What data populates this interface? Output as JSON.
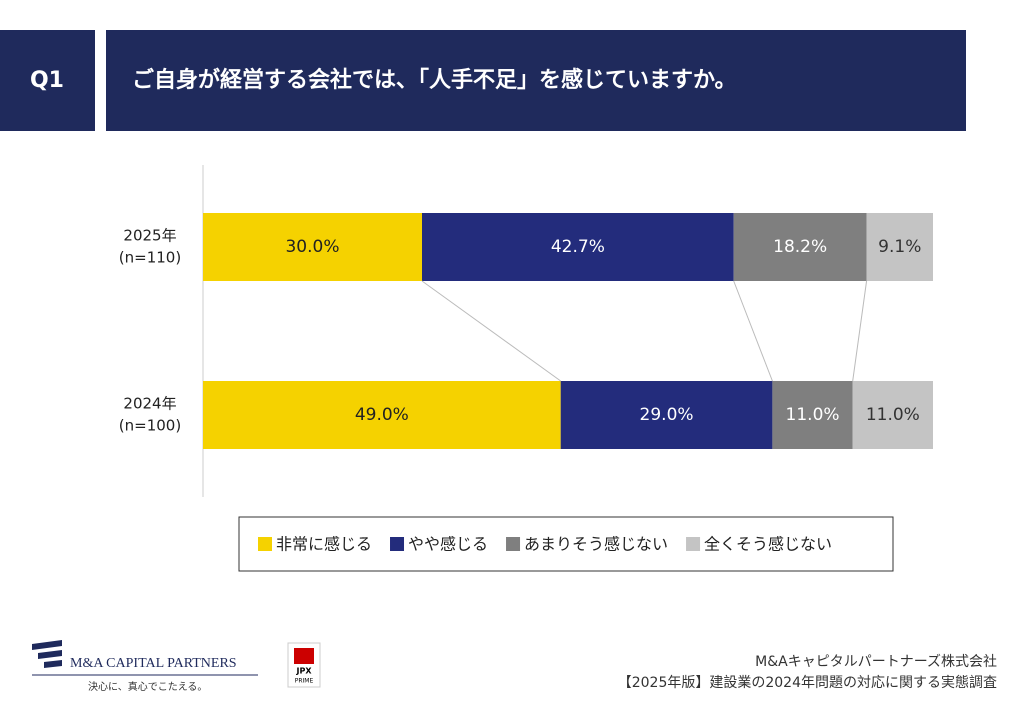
{
  "header": {
    "number": "Q1",
    "question": "ご自身が経営する会社では、「人手不足」を感じていますか。"
  },
  "chart_data": {
    "type": "stacked-bar-horizontal",
    "categories": [
      "2025年",
      "2024年"
    ],
    "category_notes": [
      "(n=110)",
      "(n=100)"
    ],
    "xlim": [
      0,
      100
    ],
    "series": [
      {
        "name": "非常に感じる",
        "color": "#f5d200",
        "label_color": "#222222",
        "values": [
          30.0,
          49.0
        ],
        "value_labels": [
          "30.0%",
          "49.0%"
        ]
      },
      {
        "name": "やや感じる",
        "color": "#232c7c",
        "label_color": "#ffffff",
        "values": [
          42.7,
          29.0
        ],
        "value_labels": [
          "42.7%",
          "29.0%"
        ]
      },
      {
        "name": "あまりそう感じない",
        "color": "#7f7f7f",
        "label_color": "#ffffff",
        "values": [
          18.2,
          11.0
        ],
        "value_labels": [
          "18.2%",
          "11.0%"
        ]
      },
      {
        "name": "全くそう感じない",
        "color": "#c4c4c4",
        "label_color": "#333333",
        "values": [
          9.1,
          11.0
        ],
        "value_labels": [
          "9.1%",
          "11.0%"
        ]
      }
    ]
  },
  "footer": {
    "logo": "M&A CAPITAL PARTNERS",
    "tagline": "決心に、真心でこたえる。",
    "badge": "JPX",
    "badge_sub": "PRIME",
    "company": "M&Aキャピタルパートナーズ株式会社",
    "report": "【2025年版】建設業の2024年問題の対応に関する実態調査"
  }
}
